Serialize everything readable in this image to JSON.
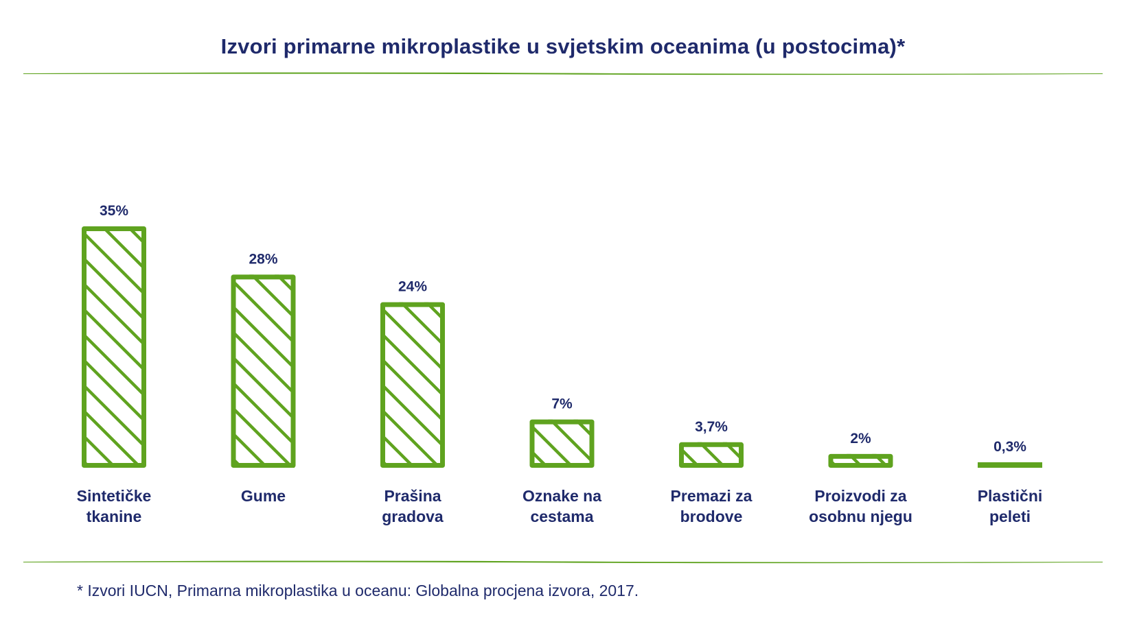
{
  "title": "Izvori primarne mikroplastike u svjetskim oceanima (u postocima)*",
  "footnote": "* Izvori IUCN, Primarna mikroplastika u oceanu: Globalna procjena izvora, 2017.",
  "colors": {
    "text": "#1f2a6b",
    "bar": "#5fa31f",
    "rule": "#5fa31f"
  },
  "chart_data": {
    "type": "bar",
    "title": "Izvori primarne mikroplastike u svjetskim oceanima (u postocima)*",
    "xlabel": "",
    "ylabel": "",
    "ylim": [
      0,
      35
    ],
    "grid": false,
    "categories": [
      [
        "Sintetičke",
        "tkanine"
      ],
      [
        "Gume"
      ],
      [
        "Prašina",
        "gradova"
      ],
      [
        "Oznake na",
        "cestama"
      ],
      [
        "Premazi za",
        "brodove"
      ],
      [
        "Proizvodi za",
        "osobnu njegu"
      ],
      [
        "Plastični",
        "peleti"
      ]
    ],
    "values": [
      35,
      28,
      24,
      7,
      3.7,
      2,
      0.3
    ],
    "value_labels": [
      "35%",
      "28%",
      "24%",
      "7%",
      "3,7%",
      "2%",
      "0,3%"
    ],
    "fill": "diagonal hatch"
  }
}
